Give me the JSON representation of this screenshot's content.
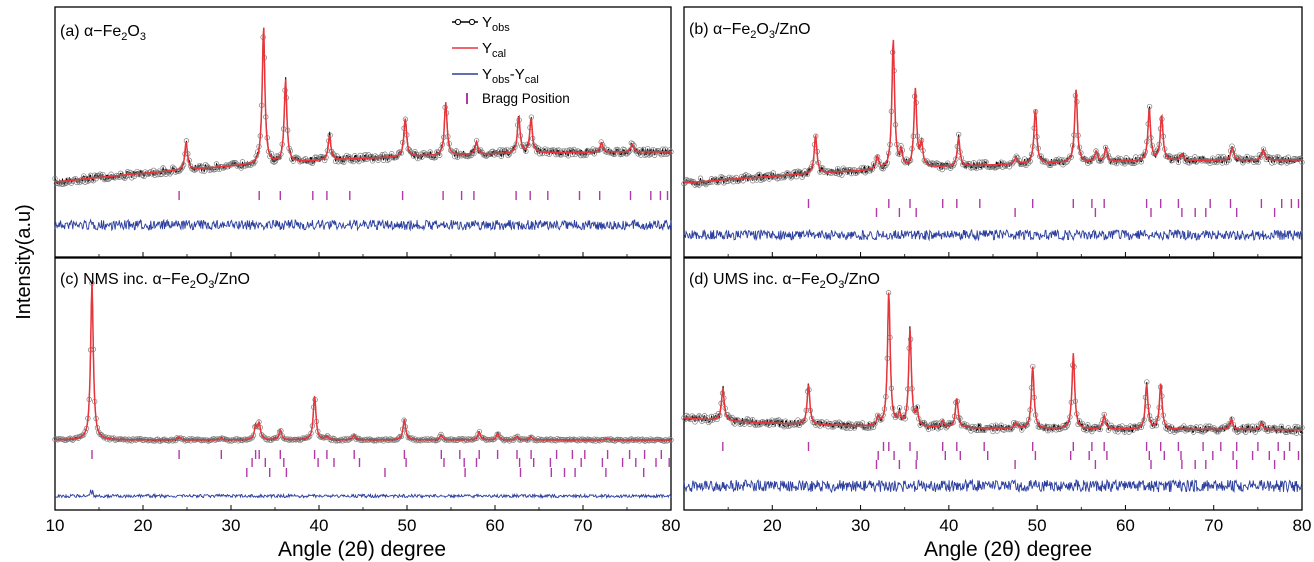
{
  "figure": {
    "ylabel": "Intensity(a.u)",
    "xlabel": "Angle (2θ) degree"
  },
  "colors": {
    "obs": "#000000",
    "cal": "#e8353b",
    "diff": "#2c3f9e",
    "bragg": "#b03aa8"
  },
  "legend": {
    "obs_label": "Y",
    "obs_sub": "obs",
    "cal_label": "Y",
    "cal_sub": "cal",
    "diff_a": "Y",
    "diff_a_sub": "obs",
    "diff_b": "-Y",
    "diff_b_sub": "cal",
    "bragg_label": "Bragg Position"
  },
  "chart_data": [
    {
      "type": "line",
      "panel": "a",
      "label_letter": "(a)",
      "label_pre": "α−Fe",
      "label_sub1": "2",
      "label_mid": "O",
      "label_sub2": "3",
      "label_post": "",
      "xlim": [
        10,
        80
      ],
      "xticks": [
        "",
        "",
        "",
        "",
        "",
        "",
        "",
        ""
      ],
      "baseline": {
        "start": 0.0,
        "end": 0.3
      },
      "peaks": [
        [
          24.9,
          0.2
        ],
        [
          33.7,
          1.0
        ],
        [
          36.2,
          0.6
        ],
        [
          41.2,
          0.18
        ],
        [
          49.8,
          0.28
        ],
        [
          54.4,
          0.38
        ],
        [
          57.9,
          0.09
        ],
        [
          62.7,
          0.27
        ],
        [
          64.1,
          0.25
        ],
        [
          72.1,
          0.07
        ],
        [
          75.6,
          0.06
        ]
      ],
      "bragg_rows": [
        [
          24.1,
          33.2,
          35.6,
          39.3,
          40.9,
          43.5,
          49.5,
          54.1,
          56.2,
          57.6,
          62.4,
          64.0,
          66.0,
          69.6,
          71.9,
          75.4,
          77.7,
          78.8,
          79.6
        ]
      ]
    },
    {
      "type": "line",
      "panel": "b",
      "label_letter": "(b)",
      "label_pre": "α−Fe",
      "label_sub1": "2",
      "label_mid": "O",
      "label_sub2": "3",
      "label_post": "/ZnO",
      "xlim": [
        10,
        80
      ],
      "xticks": [
        "",
        "",
        "",
        "",
        "",
        "",
        "",
        ""
      ],
      "baseline": {
        "start": 0.0,
        "end": 0.24
      },
      "peaks": [
        [
          24.9,
          0.3
        ],
        [
          31.9,
          0.1
        ],
        [
          33.7,
          1.0
        ],
        [
          34.6,
          0.12
        ],
        [
          36.2,
          0.6
        ],
        [
          36.9,
          0.18
        ],
        [
          41.1,
          0.22
        ],
        [
          47.6,
          0.05
        ],
        [
          49.8,
          0.42
        ],
        [
          54.4,
          0.56
        ],
        [
          56.7,
          0.08
        ],
        [
          57.8,
          0.1
        ],
        [
          62.7,
          0.4
        ],
        [
          64.1,
          0.35
        ],
        [
          66.4,
          0.05
        ],
        [
          72.1,
          0.1
        ],
        [
          75.6,
          0.08
        ]
      ],
      "bragg_rows": [
        [
          24.1,
          33.2,
          35.6,
          39.3,
          40.9,
          43.5,
          49.5,
          54.1,
          56.2,
          57.6,
          62.4,
          64.0,
          66.0,
          69.6,
          71.9,
          75.4,
          77.7,
          78.8,
          79.6
        ],
        [
          31.8,
          34.4,
          36.3,
          47.5,
          56.6,
          62.9,
          66.4,
          67.9,
          69.1,
          72.6,
          76.9,
          81.0
        ]
      ]
    },
    {
      "type": "line",
      "panel": "c",
      "label_letter": "(c)",
      "label_pre": "NMS inc. α−Fe",
      "label_sub1": "2",
      "label_mid": "O",
      "label_sub2": "3",
      "label_post": "/ZnO",
      "xlim": [
        10,
        80
      ],
      "xticks": [
        "10",
        "20",
        "30",
        "40",
        "50",
        "60",
        "70",
        "80"
      ],
      "baseline": {
        "start": 0.0,
        "end": 0.0
      },
      "peaks": [
        [
          14.2,
          1.0
        ],
        [
          24.1,
          0.02
        ],
        [
          28.9,
          0.01
        ],
        [
          32.8,
          0.08
        ],
        [
          33.2,
          0.1
        ],
        [
          35.6,
          0.06
        ],
        [
          39.5,
          0.28
        ],
        [
          40.9,
          0.02
        ],
        [
          44.0,
          0.03
        ],
        [
          49.7,
          0.13
        ],
        [
          53.9,
          0.03
        ],
        [
          58.2,
          0.05
        ],
        [
          60.3,
          0.04
        ],
        [
          62.5,
          0.02
        ],
        [
          64.1,
          0.02
        ],
        [
          72.8,
          0.01
        ]
      ],
      "bragg_rows": [
        [
          14.2,
          24.1,
          28.9,
          32.8,
          33.2,
          35.6,
          39.5,
          40.9,
          44.0,
          49.7,
          53.9,
          56.0,
          58.2,
          60.3,
          62.5,
          64.1,
          67.0,
          68.8,
          70.2,
          72.8,
          75.3,
          77.0,
          78.9
        ],
        [
          32.4,
          33.9,
          36.0,
          39.9,
          41.7,
          44.6,
          49.9,
          54.2,
          56.5,
          57.9,
          62.8,
          64.4,
          66.3,
          69.8,
          72.2,
          74.5,
          76.0,
          78.3,
          79.8
        ],
        [
          31.8,
          34.4,
          36.3,
          47.5,
          56.6,
          62.9,
          66.4,
          67.9,
          69.1,
          72.6,
          76.9
        ]
      ]
    },
    {
      "type": "line",
      "panel": "d",
      "label_letter": "(d)",
      "label_pre": "UMS inc. α−Fe",
      "label_sub1": "2",
      "label_mid": "O",
      "label_sub2": "3",
      "label_post": "/ZnO",
      "xlim": [
        10,
        80
      ],
      "xticks": [
        "",
        "20",
        "30",
        "40",
        "50",
        "60",
        "70",
        "80"
      ],
      "baseline": {
        "start": 0.12,
        "end": 0.04
      },
      "peaks": [
        [
          14.4,
          0.24
        ],
        [
          24.1,
          0.3
        ],
        [
          32.0,
          0.06
        ],
        [
          33.2,
          1.0
        ],
        [
          34.4,
          0.08
        ],
        [
          35.6,
          0.72
        ],
        [
          36.4,
          0.1
        ],
        [
          39.3,
          0.05
        ],
        [
          40.9,
          0.22
        ],
        [
          47.6,
          0.04
        ],
        [
          49.5,
          0.46
        ],
        [
          54.1,
          0.56
        ],
        [
          57.6,
          0.1
        ],
        [
          62.4,
          0.33
        ],
        [
          64.0,
          0.34
        ],
        [
          72.0,
          0.08
        ],
        [
          75.4,
          0.05
        ]
      ],
      "bragg_rows": [
        [
          14.4,
          24.1,
          32.6,
          33.2,
          35.6,
          39.3,
          40.9,
          44.0,
          49.5,
          54.1,
          56.2,
          57.6,
          62.4,
          64.0,
          66.0,
          68.8,
          70.8,
          72.6,
          75.0,
          77.3,
          78.6
        ],
        [
          32.0,
          33.8,
          36.4,
          39.6,
          41.3,
          44.4,
          49.8,
          53.8,
          55.9,
          57.9,
          62.7,
          64.4,
          66.3,
          69.9,
          72.2,
          74.4,
          76.3,
          78.0,
          79.6
        ],
        [
          31.8,
          34.4,
          36.3,
          47.5,
          56.6,
          62.9,
          66.4,
          67.9,
          69.1,
          72.6,
          76.9
        ]
      ]
    }
  ]
}
